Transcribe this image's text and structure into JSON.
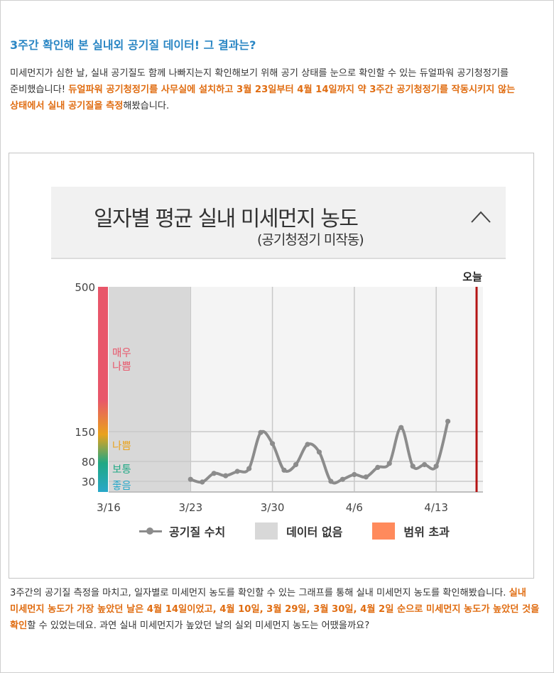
{
  "article": {
    "heading": "3주간 확인해 본 실내외 공기질 데이터! 그 결과는?",
    "intro_1": "미세먼지가 심한 날, 실내 공기질도 함께 나빠지는지 확인해보기 위해 공기 상태를 눈으로 확인할 수 있는 듀얼파워 공기청정기를 준비했습니다! ",
    "intro_hl": "듀얼파워 공기청정기를 사무실에 설치하고 3월 23일부터 4월 14일까지 약 3주간 공기청정기를 작동시키지 않는 상태에서 실내 공기질을 측정",
    "intro_2": "해봤습니다.",
    "outro_1": "3주간의 공기질 측정을 마치고, 일자별로 미세먼지 농도를 확인할 수 있는 그래프를 통해 실내 미세먼지 농도를 확인해봤습니다. ",
    "outro_hl": "실내 미세먼지 농도가 가장 높았던 날은 4월 14일이었고, 4월 10일, 3월 29일, 3월 30일, 4월 2일 순으로 미세먼지 농도가 높았던 것을 확인",
    "outro_2": "할 수 있었는데요. 과연 실내 미세먼지가 높았던 날의 실외 미세먼지 농도는 어땠을까요?"
  },
  "panel": {
    "title": "일자별 평균 실내 미세먼지 농도",
    "subtitle": "(공기청정기 미작동)",
    "collapse_icon": "chevron-up-icon"
  },
  "colors": {
    "heading": "#2a86c4",
    "highlight": "#e06d12",
    "line": "#8c8c8c",
    "no_data": "#d8d8d8",
    "out_of_range": "#ff8a5c",
    "today_marker": "#b51414"
  },
  "chart_data": {
    "type": "line",
    "title": "일자별 평균 실내 미세먼지 농도",
    "subtitle": "(공기청정기 미작동)",
    "x_labels": [
      "3/16",
      "3/23",
      "3/30",
      "4/6",
      "4/13"
    ],
    "y_ticks": [
      30,
      80,
      150,
      500
    ],
    "today_label": "오늘",
    "bands": [
      {
        "label": "좋음",
        "color": "#29a8c9"
      },
      {
        "label": "보통",
        "color": "#1fa884"
      },
      {
        "label": "나쁨",
        "color": "#e9a21c"
      },
      {
        "label": "매우 나쁨",
        "color": "#e8566a"
      }
    ],
    "no_data_range": [
      "3/16",
      "3/22"
    ],
    "series": [
      {
        "name": "공기질 수치",
        "x": [
          "3/23",
          "3/24",
          "3/25",
          "3/26",
          "3/27",
          "3/28",
          "3/29",
          "3/30",
          "3/31",
          "4/1",
          "4/2",
          "4/3",
          "4/4",
          "4/5",
          "4/6",
          "4/7",
          "4/8",
          "4/9",
          "4/10",
          "4/11",
          "4/12",
          "4/13",
          "4/14"
        ],
        "values": [
          35,
          28,
          50,
          44,
          55,
          62,
          148,
          122,
          58,
          72,
          120,
          102,
          30,
          35,
          47,
          41,
          65,
          75,
          160,
          68,
          72,
          68,
          175
        ]
      }
    ],
    "legend": [
      {
        "label": "공기질 수치",
        "kind": "line"
      },
      {
        "label": "데이터 없음",
        "kind": "box",
        "color": "#d8d8d8"
      },
      {
        "label": "범위 초과",
        "kind": "box",
        "color": "#ff8a5c"
      }
    ]
  }
}
